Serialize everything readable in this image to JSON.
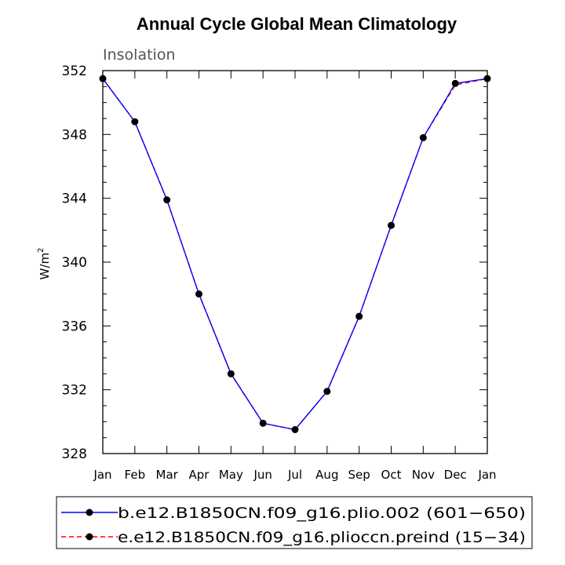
{
  "chart_data": {
    "type": "line",
    "title": "Annual Cycle Global Mean Climatology",
    "subtitle": "Insolation",
    "ylabel": "W/m",
    "ylabel_sup": "2",
    "xlabel": "",
    "categories": [
      "Jan",
      "Feb",
      "Mar",
      "Apr",
      "May",
      "Jun",
      "Jul",
      "Aug",
      "Sep",
      "Oct",
      "Nov",
      "Dec",
      "Jan"
    ],
    "ylim": [
      328,
      352
    ],
    "yticks": [
      328,
      332,
      336,
      340,
      344,
      348,
      352
    ],
    "grid": false,
    "legend_position": "bottom",
    "series": [
      {
        "name": "b.e12.B1850CN.f09_g16.plio.002 (601−650)",
        "color": "#0000ff",
        "line_style": "solid",
        "marker": "filled-circle",
        "values": [
          351.5,
          348.8,
          343.9,
          338.0,
          333.0,
          329.9,
          329.5,
          331.9,
          336.6,
          342.3,
          347.8,
          351.2,
          351.5
        ]
      },
      {
        "name": "e.e12.B1850CN.f09_g16.plioccn.preind (15−34)",
        "color": "#ff0000",
        "line_style": "dashed",
        "marker": "filled-circle",
        "values": [
          351.5,
          348.8,
          343.9,
          338.0,
          333.0,
          329.9,
          329.5,
          331.9,
          336.6,
          342.3,
          347.8,
          351.1,
          351.5
        ]
      }
    ]
  }
}
